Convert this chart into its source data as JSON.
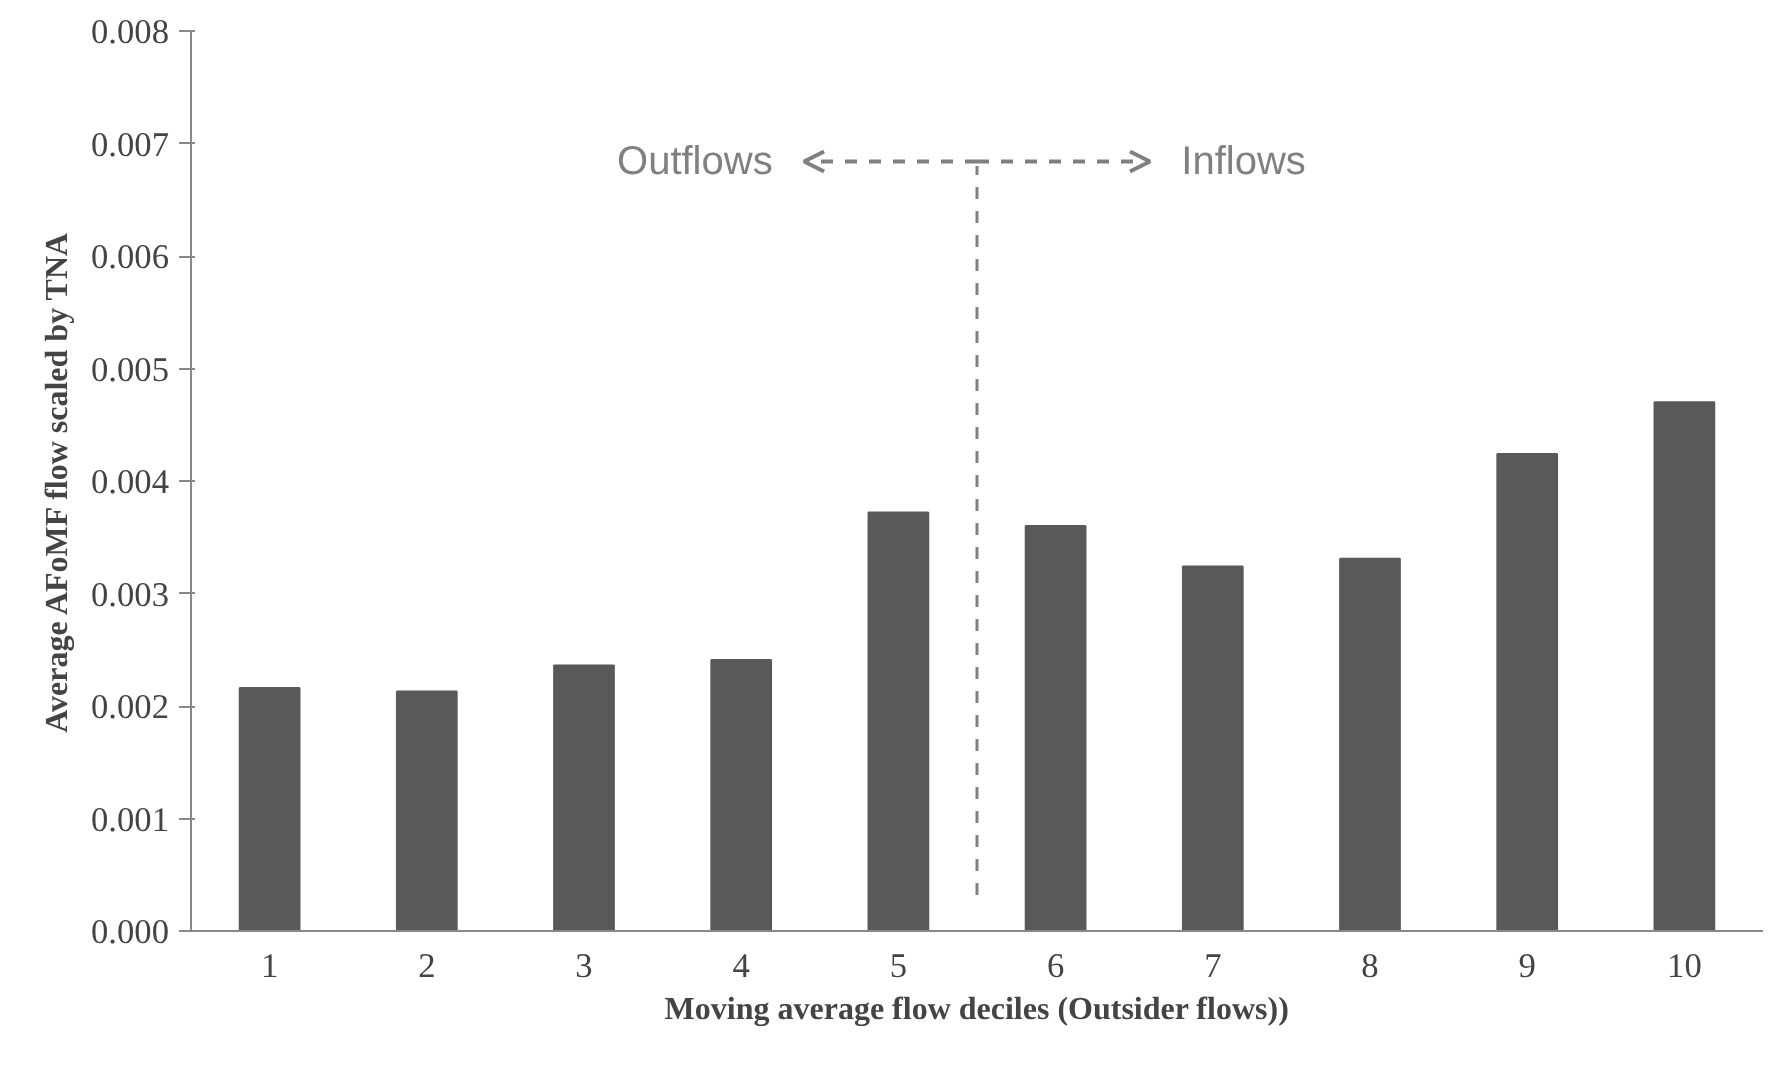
{
  "chart_data": {
    "type": "bar",
    "xlabel": "Moving average flow deciles (Outsider flows))",
    "ylabel": "Average AFoMF flow scaled by TNA",
    "categories": [
      "1",
      "2",
      "3",
      "4",
      "5",
      "6",
      "7",
      "8",
      "9",
      "10"
    ],
    "values": [
      0.00216,
      0.00213,
      0.00236,
      0.00241,
      0.00372,
      0.0036,
      0.00324,
      0.00331,
      0.00424,
      0.0047
    ],
    "color": "#595959",
    "ylim": [
      0,
      0.008
    ],
    "yticks": [
      {
        "value": 0,
        "label": "0.000"
      },
      {
        "value": 0.001,
        "label": "0.001"
      },
      {
        "value": 0.002,
        "label": "0.002"
      },
      {
        "value": 0.003,
        "label": "0.003"
      },
      {
        "value": 0.004,
        "label": "0.004"
      },
      {
        "value": 0.005,
        "label": "0.005"
      },
      {
        "value": 0.006,
        "label": "0.006"
      },
      {
        "value": 0.007,
        "label": "0.007"
      },
      {
        "value": 0.008,
        "label": "0.008"
      }
    ],
    "annotations": [
      "Outflows",
      "Inflows"
    ],
    "grid": false
  }
}
